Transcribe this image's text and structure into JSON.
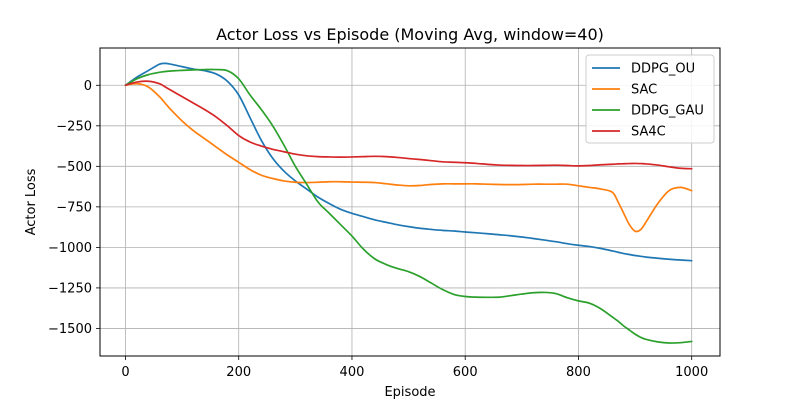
{
  "chart_data": {
    "type": "line",
    "title": "Actor Loss vs Episode (Moving Avg, window=40)",
    "xlabel": "Episode",
    "ylabel": "Actor Loss",
    "xlim": [
      -45,
      1050
    ],
    "ylim": [
      -1670,
      230
    ],
    "xticks": [
      0,
      200,
      400,
      600,
      800,
      1000
    ],
    "yticks": [
      0,
      -250,
      -500,
      -750,
      -1000,
      -1250,
      -1500
    ],
    "grid": true,
    "legend_position": "top-right",
    "x": [
      0,
      20,
      40,
      60,
      70,
      80,
      100,
      120,
      140,
      160,
      180,
      200,
      220,
      240,
      260,
      280,
      300,
      320,
      340,
      360,
      380,
      400,
      420,
      440,
      460,
      480,
      500,
      520,
      540,
      560,
      580,
      600,
      620,
      640,
      660,
      680,
      700,
      720,
      740,
      760,
      780,
      800,
      820,
      840,
      860,
      870,
      880,
      890,
      900,
      910,
      920,
      940,
      960,
      980,
      1000
    ],
    "series": [
      {
        "name": "DDPG_OU",
        "color": "#1f77b4",
        "values": [
          0,
          50,
          90,
          130,
          135,
          130,
          115,
          100,
          90,
          70,
          25,
          -60,
          -200,
          -340,
          -450,
          -530,
          -590,
          -640,
          -690,
          -730,
          -765,
          -790,
          -810,
          -830,
          -845,
          -860,
          -872,
          -882,
          -889,
          -895,
          -899,
          -905,
          -910,
          -916,
          -922,
          -928,
          -936,
          -945,
          -955,
          -965,
          -977,
          -987,
          -995,
          -1007,
          -1022,
          -1030,
          -1038,
          -1044,
          -1050,
          -1055,
          -1060,
          -1067,
          -1073,
          -1078,
          -1082
        ]
      },
      {
        "name": "SAC",
        "color": "#ff7f0e",
        "values": [
          0,
          10,
          -10,
          -70,
          -110,
          -150,
          -220,
          -280,
          -330,
          -380,
          -430,
          -475,
          -520,
          -555,
          -575,
          -590,
          -598,
          -600,
          -598,
          -595,
          -595,
          -597,
          -598,
          -600,
          -607,
          -615,
          -620,
          -618,
          -612,
          -608,
          -608,
          -608,
          -608,
          -610,
          -612,
          -613,
          -612,
          -610,
          -610,
          -610,
          -610,
          -620,
          -630,
          -640,
          -660,
          -720,
          -790,
          -860,
          -900,
          -890,
          -840,
          -730,
          -650,
          -630,
          -650
        ]
      },
      {
        "name": "DDPG_GAU",
        "color": "#2ca02c",
        "values": [
          0,
          40,
          65,
          80,
          85,
          88,
          92,
          95,
          97,
          97,
          90,
          40,
          -60,
          -150,
          -250,
          -370,
          -500,
          -610,
          -720,
          -790,
          -860,
          -930,
          -1010,
          -1070,
          -1105,
          -1130,
          -1150,
          -1180,
          -1220,
          -1260,
          -1290,
          -1303,
          -1307,
          -1308,
          -1307,
          -1298,
          -1288,
          -1280,
          -1278,
          -1285,
          -1310,
          -1330,
          -1345,
          -1380,
          -1430,
          -1455,
          -1485,
          -1510,
          -1535,
          -1555,
          -1568,
          -1583,
          -1590,
          -1588,
          -1580
        ]
      },
      {
        "name": "SA4C",
        "color": "#d62728",
        "values": [
          0,
          20,
          25,
          10,
          -10,
          -30,
          -70,
          -110,
          -150,
          -195,
          -250,
          -310,
          -350,
          -375,
          -395,
          -410,
          -425,
          -435,
          -440,
          -442,
          -443,
          -442,
          -440,
          -438,
          -440,
          -445,
          -452,
          -458,
          -465,
          -472,
          -475,
          -478,
          -482,
          -488,
          -492,
          -494,
          -495,
          -495,
          -494,
          -493,
          -495,
          -497,
          -495,
          -490,
          -487,
          -485,
          -484,
          -483,
          -482,
          -483,
          -485,
          -492,
          -503,
          -512,
          -515
        ]
      }
    ]
  }
}
